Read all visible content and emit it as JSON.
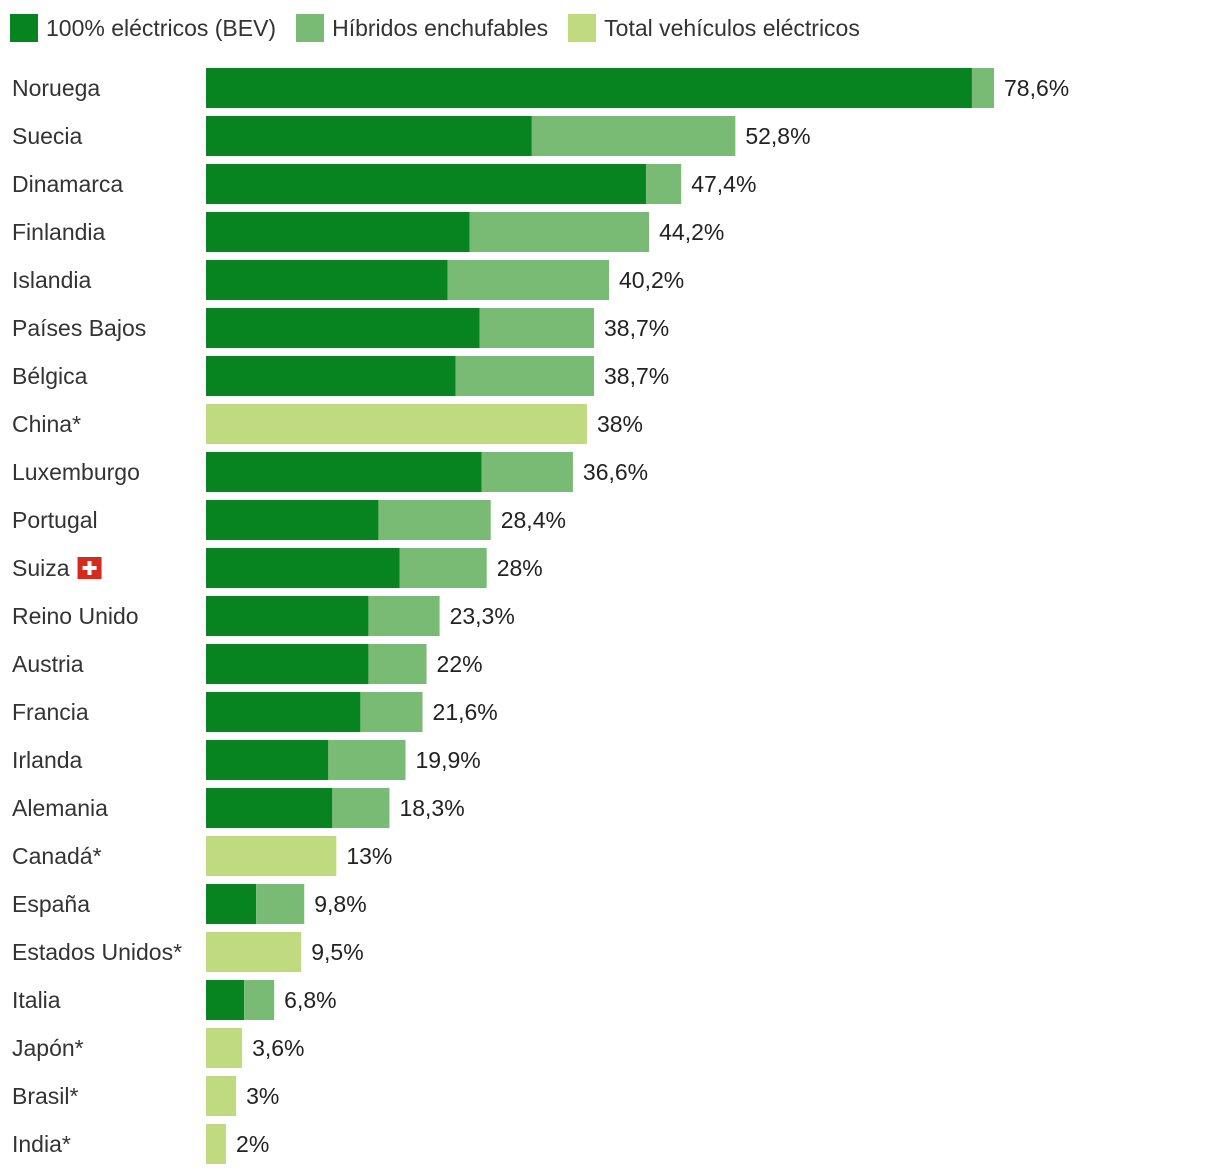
{
  "legend": {
    "bev_label": "100% eléctricos (BEV)",
    "phev_label": "Híbridos enchufables",
    "total_label": "Total vehículos eléctricos"
  },
  "colors": {
    "bev": "#07831f",
    "phev": "#79bb75",
    "total": "#c0da80"
  },
  "chart_data": {
    "type": "bar",
    "orientation": "horizontal",
    "stacked": true,
    "unit": "%",
    "xlim": [
      0,
      78.6
    ],
    "grid": false,
    "legend_position": "top-left",
    "series": [
      {
        "name": "100% eléctricos (BEV)",
        "key": "bev"
      },
      {
        "name": "Híbridos enchufables",
        "key": "phev"
      },
      {
        "name": "Total vehículos eléctricos",
        "key": "total"
      }
    ],
    "rows": [
      {
        "country": "Noruega",
        "bev": 76.4,
        "phev": 2.2,
        "total": null,
        "label": "78,6%"
      },
      {
        "country": "Suecia",
        "bev": 32.5,
        "phev": 20.3,
        "total": null,
        "label": "52,8%"
      },
      {
        "country": "Dinamarca",
        "bev": 43.9,
        "phev": 3.5,
        "total": null,
        "label": "47,4%"
      },
      {
        "country": "Finlandia",
        "bev": 26.3,
        "phev": 17.9,
        "total": null,
        "label": "44,2%"
      },
      {
        "country": "Islandia",
        "bev": 24.1,
        "phev": 16.1,
        "total": null,
        "label": "40,2%"
      },
      {
        "country": "Países Bajos",
        "bev": 27.3,
        "phev": 11.4,
        "total": null,
        "label": "38,7%"
      },
      {
        "country": "Bélgica",
        "bev": 24.9,
        "phev": 13.8,
        "total": null,
        "label": "38,7%"
      },
      {
        "country": "China*",
        "bev": null,
        "phev": null,
        "total": 38,
        "label": "38%"
      },
      {
        "country": "Luxemburgo",
        "bev": 27.5,
        "phev": 9.1,
        "total": null,
        "label": "36,6%"
      },
      {
        "country": "Portugal",
        "bev": 17.2,
        "phev": 11.2,
        "total": null,
        "label": "28,4%"
      },
      {
        "country": "Suiza",
        "bev": 19.3,
        "phev": 8.7,
        "total": null,
        "label": "28%",
        "flag": "swiss-flag"
      },
      {
        "country": "Reino Unido",
        "bev": 16.2,
        "phev": 7.1,
        "total": null,
        "label": "23,3%"
      },
      {
        "country": "Austria",
        "bev": 16.2,
        "phev": 5.8,
        "total": null,
        "label": "22%"
      },
      {
        "country": "Francia",
        "bev": 15.4,
        "phev": 6.2,
        "total": null,
        "label": "21,6%"
      },
      {
        "country": "Irlanda",
        "bev": 12.2,
        "phev": 7.7,
        "total": null,
        "label": "19,9%"
      },
      {
        "country": "Alemania",
        "bev": 12.6,
        "phev": 5.7,
        "total": null,
        "label": "18,3%"
      },
      {
        "country": "Canadá*",
        "bev": null,
        "phev": null,
        "total": 13,
        "label": "13%"
      },
      {
        "country": "España",
        "bev": 5.0,
        "phev": 4.8,
        "total": null,
        "label": "9,8%"
      },
      {
        "country": "Estados Unidos*",
        "bev": null,
        "phev": null,
        "total": 9.5,
        "label": "9,5%"
      },
      {
        "country": "Italia",
        "bev": 3.8,
        "phev": 3.0,
        "total": null,
        "label": "6,8%"
      },
      {
        "country": "Japón*",
        "bev": null,
        "phev": null,
        "total": 3.6,
        "label": "3,6%"
      },
      {
        "country": "Brasil*",
        "bev": null,
        "phev": null,
        "total": 3,
        "label": "3%"
      },
      {
        "country": "India*",
        "bev": null,
        "phev": null,
        "total": 2,
        "label": "2%"
      }
    ]
  }
}
